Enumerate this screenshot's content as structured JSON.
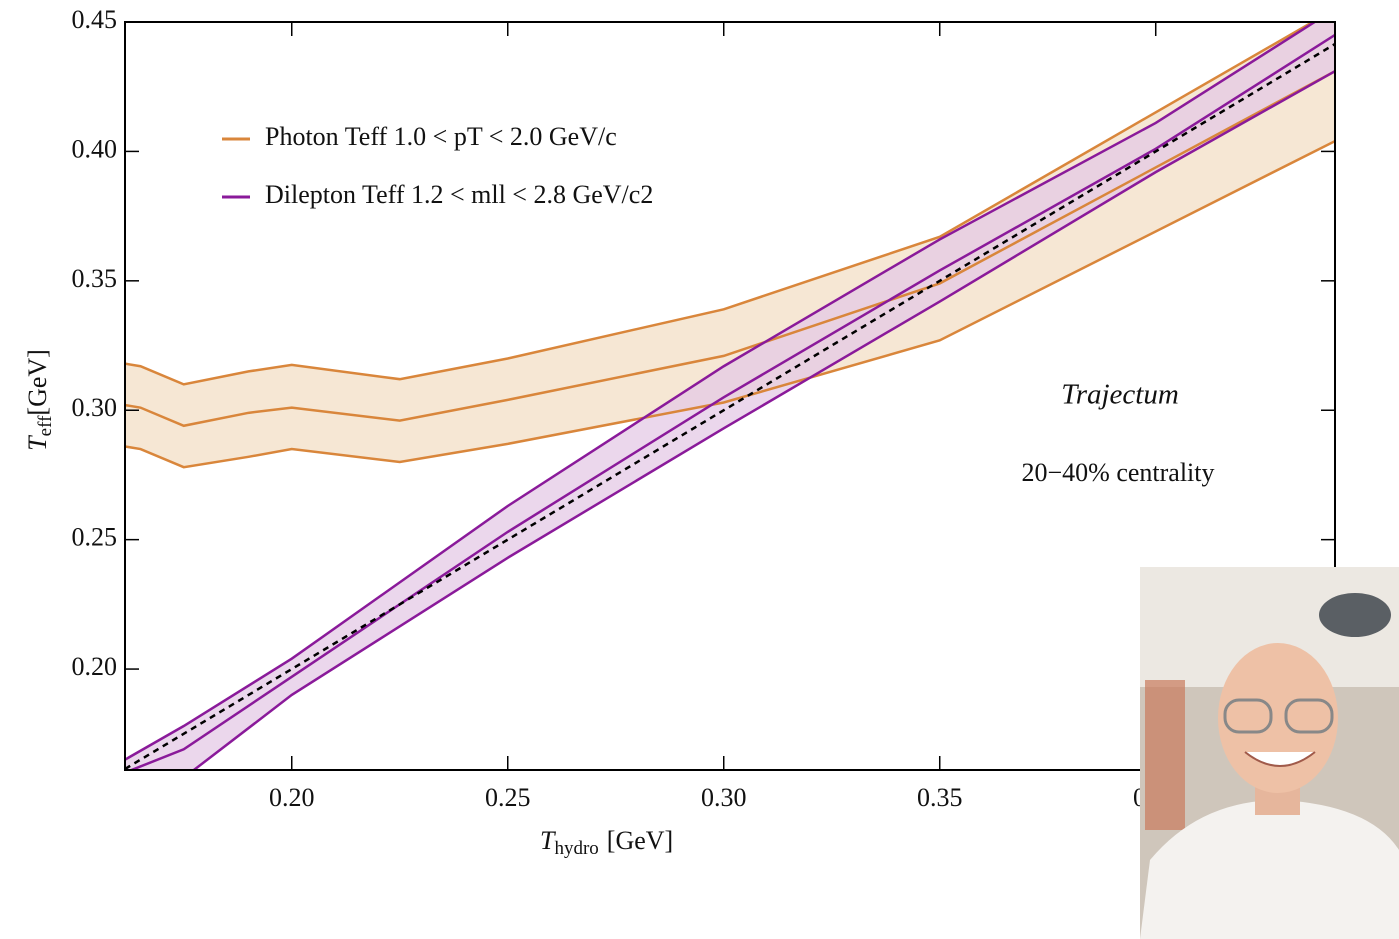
{
  "chart_data": {
    "type": "band",
    "x_label": {
      "symbol": "T",
      "subscript": "hydro",
      "unit": "[GeV]"
    },
    "y_label": {
      "symbol": "T",
      "subscript": "eff",
      "unit": "[GeV]"
    },
    "xlim": [
      0.1614,
      0.4415
    ],
    "ylim": [
      0.161,
      0.45
    ],
    "xticks": [
      {
        "value": 0.2,
        "label": "0.20"
      },
      0.25,
      {
        "value": 0.3,
        "label": "0.30"
      },
      0.35,
      {
        "value": 0.4,
        "label": "0.40"
      }
    ],
    "yticks": [
      {
        "value": 0.2,
        "label": "0.20"
      },
      0.25,
      {
        "value": 0.3,
        "label": "0.30"
      },
      0.35,
      {
        "value": 0.4,
        "label": "0.40"
      },
      0.45
    ],
    "series": [
      {
        "name": "Photon Teff 1.0 < pT < 2.0 GeV/c",
        "color": "#d9863b",
        "fill": "#f3dfc6",
        "x": [
          0.1614,
          0.165,
          0.175,
          0.19,
          0.2,
          0.225,
          0.25,
          0.3,
          0.35,
          0.4415
        ],
        "upper": [
          0.318,
          0.317,
          0.31,
          0.315,
          0.3175,
          0.312,
          0.32,
          0.339,
          0.367,
          0.455
        ],
        "values": [
          0.302,
          0.301,
          0.294,
          0.299,
          0.301,
          0.296,
          0.304,
          0.321,
          0.349,
          0.431
        ],
        "lower": [
          0.286,
          0.285,
          0.278,
          0.282,
          0.285,
          0.28,
          0.287,
          0.303,
          0.327,
          0.404
        ]
      },
      {
        "name": "Dilepton Teff 1.2 < mll < 2.8 GeV/c2",
        "color": "#8a1a9a",
        "fill": "#e4c9e6",
        "x": [
          0.1614,
          0.175,
          0.2,
          0.25,
          0.3,
          0.35,
          0.4,
          0.4415
        ],
        "upper": [
          0.165,
          0.178,
          0.204,
          0.263,
          0.317,
          0.366,
          0.411,
          0.455
        ],
        "values": [
          0.16,
          0.169,
          0.197,
          0.253,
          0.305,
          0.354,
          0.401,
          0.445
        ],
        "lower": [
          0.145,
          0.158,
          0.19,
          0.243,
          0.293,
          0.342,
          0.392,
          0.431
        ]
      }
    ],
    "reference_line": {
      "x": [
        0.1614,
        0.4415
      ],
      "values": [
        0.1614,
        0.4415
      ],
      "color": "#000000"
    },
    "annotations": [
      "Trajectum",
      "20−40% centrality"
    ]
  }
}
